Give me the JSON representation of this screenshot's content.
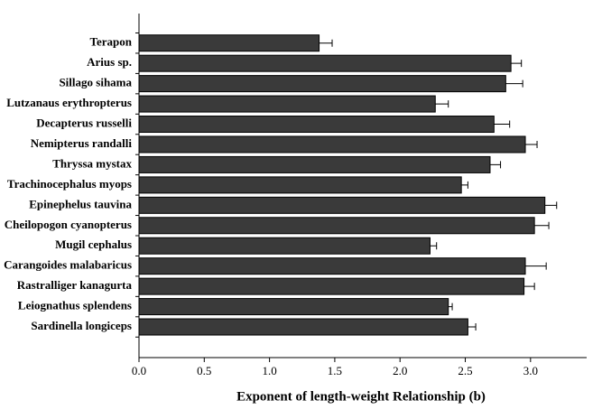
{
  "chart_data": {
    "type": "hbar",
    "x_label": "Exponent of length-weight Relationship (b)",
    "categories": [
      "Terapon",
      "Arius sp.",
      "Sillago sihama",
      "Lutzanaus erythropterus",
      "Decapterus russelli",
      "Nemipterus randalli",
      "Thryssa mystax",
      "Trachinocephalus myops",
      "Epinephelus tauvina",
      "Cheilopogon cyanopterus",
      "Mugil cephalus",
      "Carangoides malabaricus",
      "Rastralliger kanagurta",
      "Leiognathus splendens",
      "Sardinella longiceps"
    ],
    "values": [
      1.38,
      2.85,
      2.81,
      2.27,
      2.72,
      2.96,
      2.69,
      2.47,
      3.11,
      3.03,
      2.23,
      2.96,
      2.95,
      2.37,
      2.52
    ],
    "errors": [
      0.1,
      0.08,
      0.13,
      0.1,
      0.12,
      0.09,
      0.08,
      0.05,
      0.09,
      0.11,
      0.05,
      0.16,
      0.08,
      0.03,
      0.06
    ],
    "color": "#3a3a3a",
    "xlim": [
      0,
      3.43
    ],
    "xticks": [
      {
        "value": 0,
        "label": "0.0"
      },
      0.5,
      {
        "value": 1,
        "label": "1.0"
      },
      1.5,
      {
        "value": 2,
        "label": "2.0"
      },
      2.5,
      {
        "value": 3,
        "label": "3.0"
      }
    ]
  }
}
